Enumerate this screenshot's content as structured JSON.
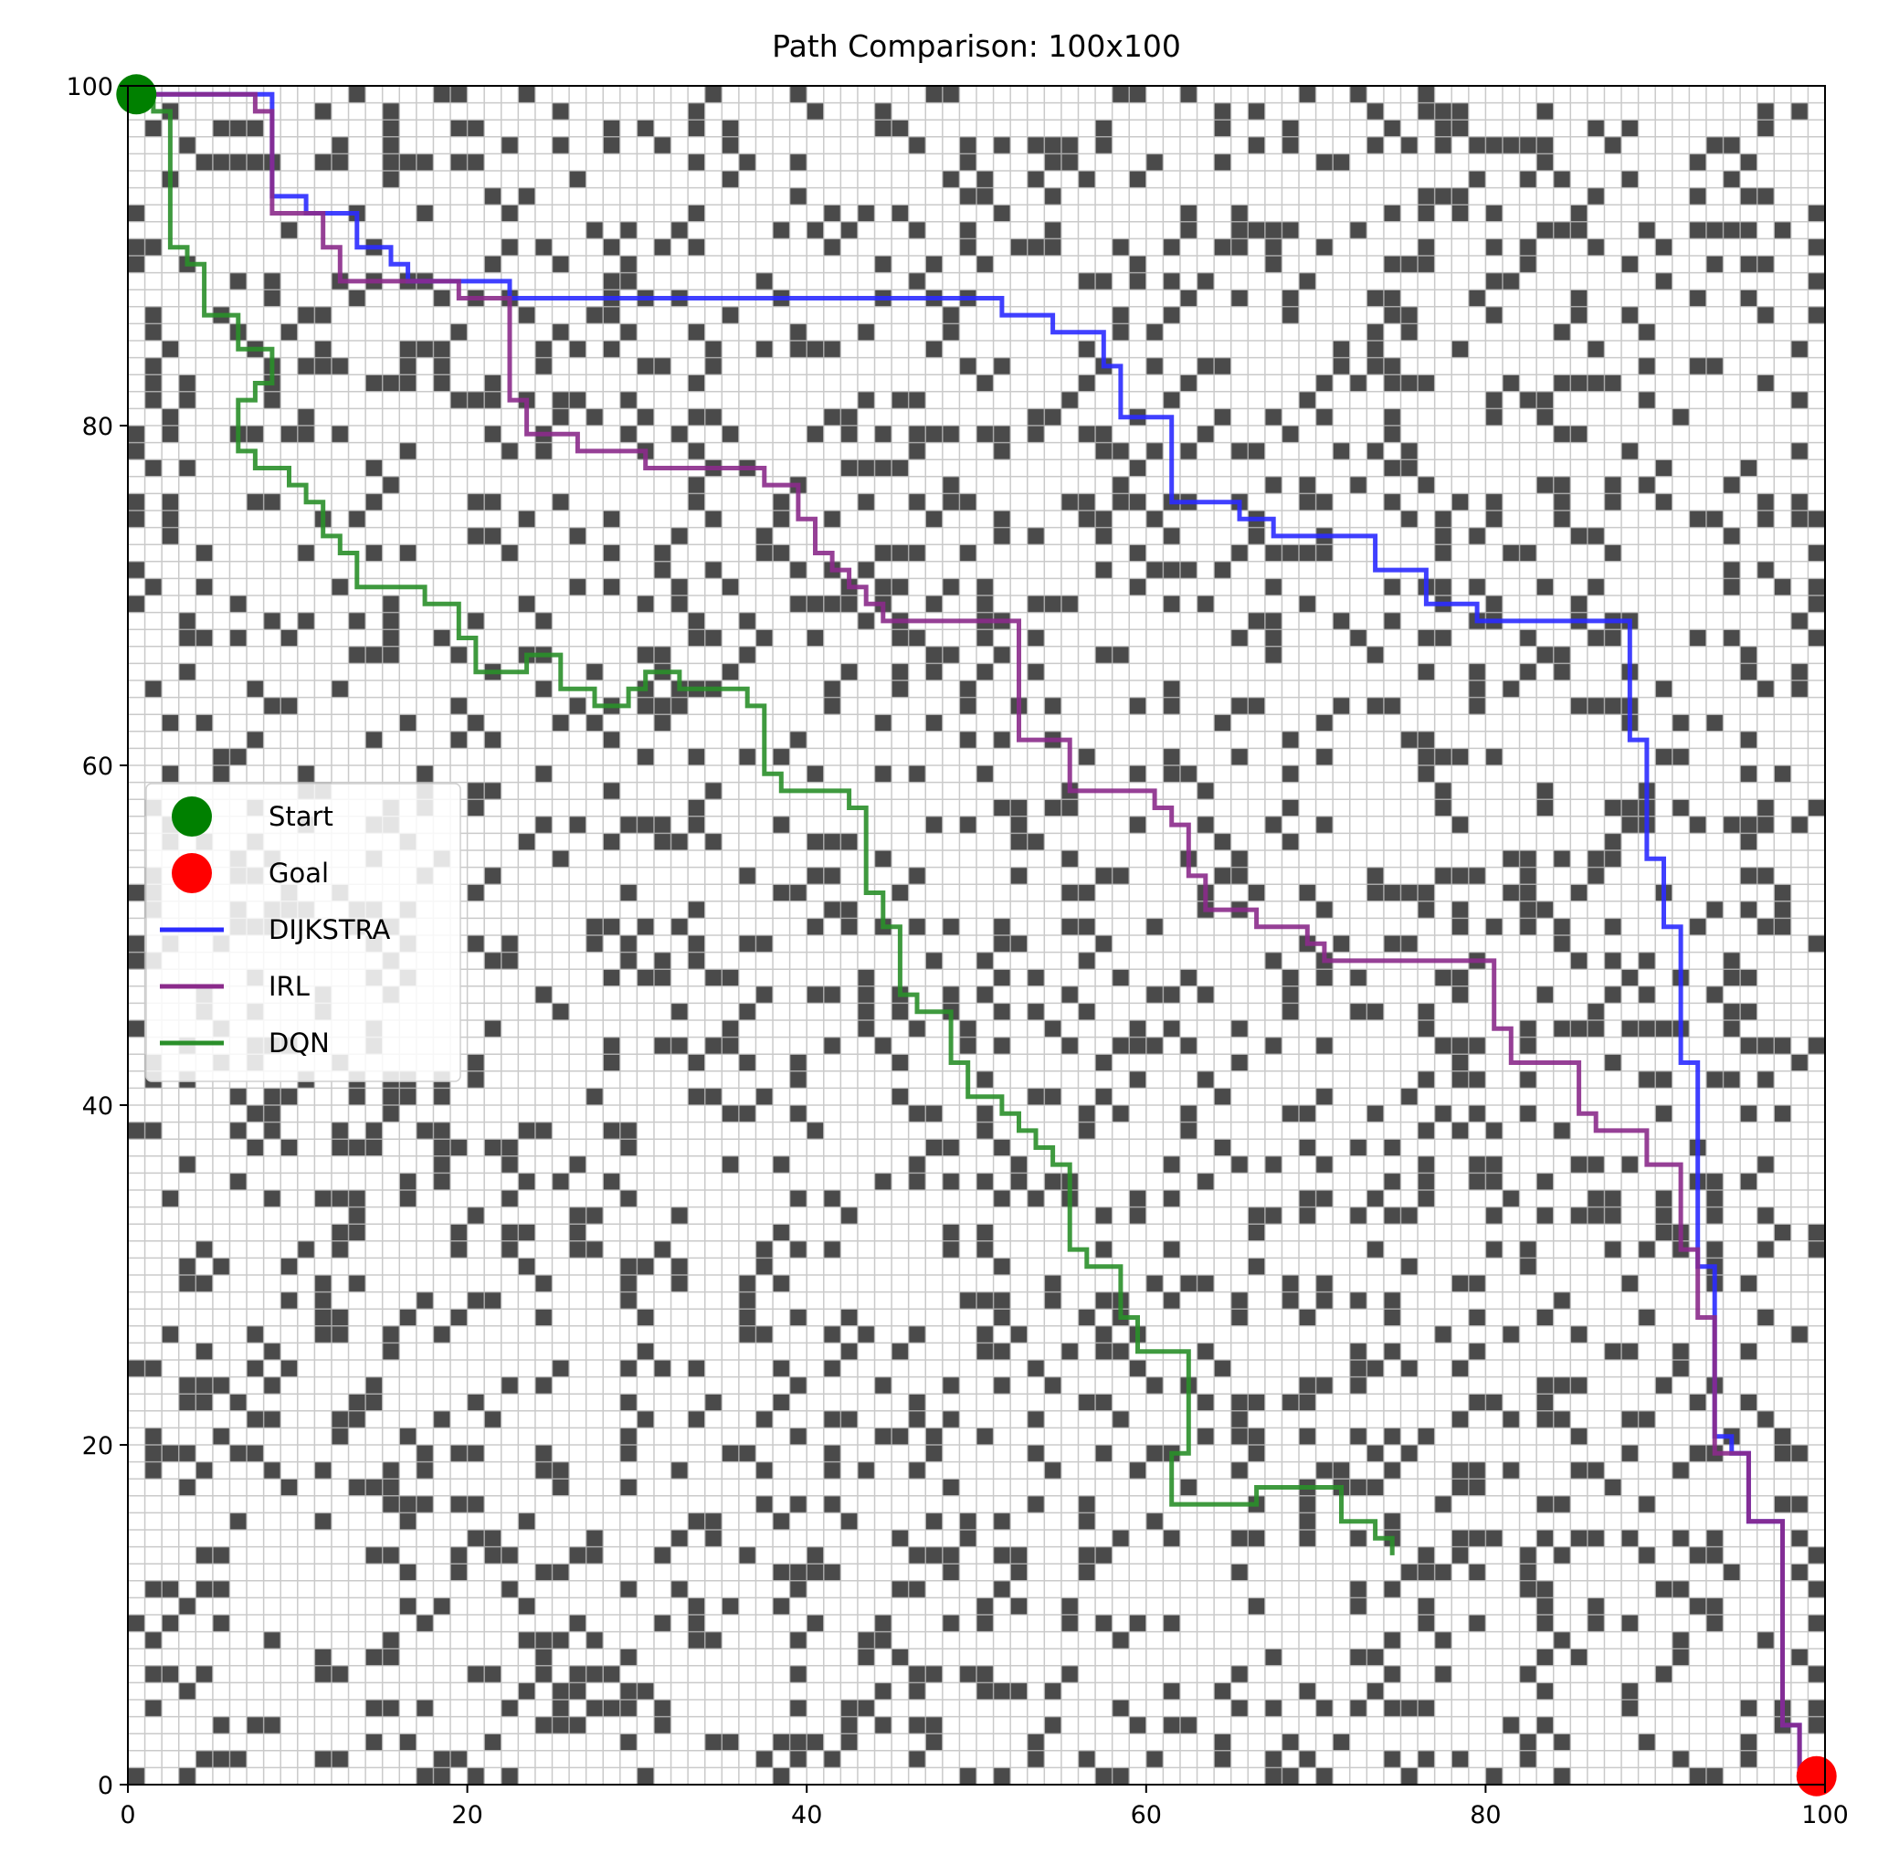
{
  "chart_data": {
    "type": "line",
    "title": "Path Comparison: 100x100",
    "xlabel": "",
    "ylabel": "",
    "xlim": [
      0,
      100
    ],
    "ylim": [
      0,
      100
    ],
    "x_ticks": [
      "0",
      "20",
      "40",
      "60",
      "80",
      "100"
    ],
    "y_ticks": [
      "0",
      "20",
      "40",
      "60",
      "80",
      "100"
    ],
    "grid": true,
    "background": "random obstacle grid (100x100 cells, dark = obstacle)",
    "legend_position": "center-left",
    "markers": [
      {
        "name": "Start",
        "x": 0.5,
        "y": 99.5,
        "color": "#008000"
      },
      {
        "name": "Goal",
        "x": 99.5,
        "y": 0.5,
        "color": "#ff0000"
      }
    ],
    "series": [
      {
        "name": "DIJKSTRA",
        "color": "#2b2bff",
        "points": [
          [
            0.5,
            99.5
          ],
          [
            8.5,
            99.5
          ],
          [
            8.5,
            93.5
          ],
          [
            10.5,
            93.5
          ],
          [
            10.5,
            92.5
          ],
          [
            13.5,
            92.5
          ],
          [
            13.5,
            90.5
          ],
          [
            15.5,
            90.5
          ],
          [
            15.5,
            89.5
          ],
          [
            16.5,
            89.5
          ],
          [
            16.5,
            88.5
          ],
          [
            22.5,
            88.5
          ],
          [
            22.5,
            87.5
          ],
          [
            51.5,
            87.5
          ],
          [
            51.5,
            86.5
          ],
          [
            54.5,
            86.5
          ],
          [
            54.5,
            85.5
          ],
          [
            57.5,
            85.5
          ],
          [
            57.5,
            83.5
          ],
          [
            58.5,
            83.5
          ],
          [
            58.5,
            80.5
          ],
          [
            61.5,
            80.5
          ],
          [
            61.5,
            75.5
          ],
          [
            65.5,
            75.5
          ],
          [
            65.5,
            74.5
          ],
          [
            67.5,
            74.5
          ],
          [
            67.5,
            73.5
          ],
          [
            73.5,
            73.5
          ],
          [
            73.5,
            71.5
          ],
          [
            76.5,
            71.5
          ],
          [
            76.5,
            69.5
          ],
          [
            79.5,
            69.5
          ],
          [
            79.5,
            68.5
          ],
          [
            88.5,
            68.5
          ],
          [
            88.5,
            61.5
          ],
          [
            89.5,
            61.5
          ],
          [
            89.5,
            54.5
          ],
          [
            90.5,
            54.5
          ],
          [
            90.5,
            50.5
          ],
          [
            91.5,
            50.5
          ],
          [
            91.5,
            42.5
          ],
          [
            92.5,
            42.5
          ],
          [
            92.5,
            30.5
          ],
          [
            93.5,
            30.5
          ],
          [
            93.5,
            20.5
          ],
          [
            94.5,
            20.5
          ],
          [
            94.5,
            19.5
          ],
          [
            95.5,
            19.5
          ],
          [
            95.5,
            15.5
          ],
          [
            97.5,
            15.5
          ],
          [
            97.5,
            3.5
          ],
          [
            98.5,
            3.5
          ],
          [
            98.5,
            0.5
          ],
          [
            99.5,
            0.5
          ]
        ]
      },
      {
        "name": "IRL",
        "color": "#8b2b8b",
        "points": [
          [
            0.5,
            99.5
          ],
          [
            7.5,
            99.5
          ],
          [
            7.5,
            98.5
          ],
          [
            8.5,
            98.5
          ],
          [
            8.5,
            92.5
          ],
          [
            11.5,
            92.5
          ],
          [
            11.5,
            90.5
          ],
          [
            12.5,
            90.5
          ],
          [
            12.5,
            88.5
          ],
          [
            19.5,
            88.5
          ],
          [
            19.5,
            87.5
          ],
          [
            22.5,
            87.5
          ],
          [
            22.5,
            81.5
          ],
          [
            23.5,
            81.5
          ],
          [
            23.5,
            79.5
          ],
          [
            26.5,
            79.5
          ],
          [
            26.5,
            78.5
          ],
          [
            30.5,
            78.5
          ],
          [
            30.5,
            77.5
          ],
          [
            37.5,
            77.5
          ],
          [
            37.5,
            76.5
          ],
          [
            39.5,
            76.5
          ],
          [
            39.5,
            74.5
          ],
          [
            40.5,
            74.5
          ],
          [
            40.5,
            72.5
          ],
          [
            41.5,
            72.5
          ],
          [
            41.5,
            71.5
          ],
          [
            42.5,
            71.5
          ],
          [
            42.5,
            70.5
          ],
          [
            43.5,
            70.5
          ],
          [
            43.5,
            69.5
          ],
          [
            44.5,
            69.5
          ],
          [
            44.5,
            68.5
          ],
          [
            52.5,
            68.5
          ],
          [
            52.5,
            61.5
          ],
          [
            55.5,
            61.5
          ],
          [
            55.5,
            58.5
          ],
          [
            60.5,
            58.5
          ],
          [
            60.5,
            57.5
          ],
          [
            61.5,
            57.5
          ],
          [
            61.5,
            56.5
          ],
          [
            62.5,
            56.5
          ],
          [
            62.5,
            53.5
          ],
          [
            63.5,
            53.5
          ],
          [
            63.5,
            51.5
          ],
          [
            66.5,
            51.5
          ],
          [
            66.5,
            50.5
          ],
          [
            69.5,
            50.5
          ],
          [
            69.5,
            49.5
          ],
          [
            70.5,
            49.5
          ],
          [
            70.5,
            48.5
          ],
          [
            80.5,
            48.5
          ],
          [
            80.5,
            44.5
          ],
          [
            81.5,
            44.5
          ],
          [
            81.5,
            42.5
          ],
          [
            85.5,
            42.5
          ],
          [
            85.5,
            39.5
          ],
          [
            86.5,
            39.5
          ],
          [
            86.5,
            38.5
          ],
          [
            89.5,
            38.5
          ],
          [
            89.5,
            36.5
          ],
          [
            91.5,
            36.5
          ],
          [
            91.5,
            31.5
          ],
          [
            92.5,
            31.5
          ],
          [
            92.5,
            27.5
          ],
          [
            93.5,
            27.5
          ],
          [
            93.5,
            19.5
          ],
          [
            95.5,
            19.5
          ],
          [
            95.5,
            15.5
          ],
          [
            97.5,
            15.5
          ],
          [
            97.5,
            3.5
          ],
          [
            98.5,
            3.5
          ],
          [
            98.5,
            0.5
          ],
          [
            99.5,
            0.5
          ]
        ]
      },
      {
        "name": "DQN",
        "color": "#2a8f2a",
        "points": [
          [
            0.5,
            99.5
          ],
          [
            1.5,
            99.5
          ],
          [
            1.5,
            98.5
          ],
          [
            2.5,
            98.5
          ],
          [
            2.5,
            90.5
          ],
          [
            3.5,
            90.5
          ],
          [
            3.5,
            89.5
          ],
          [
            4.5,
            89.5
          ],
          [
            4.5,
            86.5
          ],
          [
            6.5,
            86.5
          ],
          [
            6.5,
            84.5
          ],
          [
            8.5,
            84.5
          ],
          [
            8.5,
            82.5
          ],
          [
            7.5,
            82.5
          ],
          [
            7.5,
            81.5
          ],
          [
            6.5,
            81.5
          ],
          [
            6.5,
            78.5
          ],
          [
            7.5,
            78.5
          ],
          [
            7.5,
            77.5
          ],
          [
            9.5,
            77.5
          ],
          [
            9.5,
            76.5
          ],
          [
            10.5,
            76.5
          ],
          [
            10.5,
            75.5
          ],
          [
            11.5,
            75.5
          ],
          [
            11.5,
            73.5
          ],
          [
            12.5,
            73.5
          ],
          [
            12.5,
            72.5
          ],
          [
            13.5,
            72.5
          ],
          [
            13.5,
            70.5
          ],
          [
            17.5,
            70.5
          ],
          [
            17.5,
            69.5
          ],
          [
            19.5,
            69.5
          ],
          [
            19.5,
            67.5
          ],
          [
            20.5,
            67.5
          ],
          [
            20.5,
            65.5
          ],
          [
            23.5,
            65.5
          ],
          [
            23.5,
            66.5
          ],
          [
            25.5,
            66.5
          ],
          [
            25.5,
            64.5
          ],
          [
            27.5,
            64.5
          ],
          [
            27.5,
            63.5
          ],
          [
            29.5,
            63.5
          ],
          [
            29.5,
            64.5
          ],
          [
            30.5,
            64.5
          ],
          [
            30.5,
            65.5
          ],
          [
            32.5,
            65.5
          ],
          [
            32.5,
            64.5
          ],
          [
            36.5,
            64.5
          ],
          [
            36.5,
            63.5
          ],
          [
            37.5,
            63.5
          ],
          [
            37.5,
            59.5
          ],
          [
            38.5,
            59.5
          ],
          [
            38.5,
            58.5
          ],
          [
            42.5,
            58.5
          ],
          [
            42.5,
            57.5
          ],
          [
            43.5,
            57.5
          ],
          [
            43.5,
            52.5
          ],
          [
            44.5,
            52.5
          ],
          [
            44.5,
            50.5
          ],
          [
            45.5,
            50.5
          ],
          [
            45.5,
            46.5
          ],
          [
            46.5,
            46.5
          ],
          [
            46.5,
            45.5
          ],
          [
            48.5,
            45.5
          ],
          [
            48.5,
            42.5
          ],
          [
            49.5,
            42.5
          ],
          [
            49.5,
            40.5
          ],
          [
            51.5,
            40.5
          ],
          [
            51.5,
            39.5
          ],
          [
            52.5,
            39.5
          ],
          [
            52.5,
            38.5
          ],
          [
            53.5,
            38.5
          ],
          [
            53.5,
            37.5
          ],
          [
            54.5,
            37.5
          ],
          [
            54.5,
            36.5
          ],
          [
            55.5,
            36.5
          ],
          [
            55.5,
            31.5
          ],
          [
            56.5,
            31.5
          ],
          [
            56.5,
            30.5
          ],
          [
            58.5,
            30.5
          ],
          [
            58.5,
            27.5
          ],
          [
            59.5,
            27.5
          ],
          [
            59.5,
            25.5
          ],
          [
            62.5,
            25.5
          ],
          [
            62.5,
            19.5
          ],
          [
            61.5,
            19.5
          ],
          [
            61.5,
            16.5
          ],
          [
            66.5,
            16.5
          ],
          [
            66.5,
            17.5
          ],
          [
            71.5,
            17.5
          ],
          [
            71.5,
            15.5
          ],
          [
            73.5,
            15.5
          ],
          [
            73.5,
            14.5
          ],
          [
            74.5,
            14.5
          ],
          [
            74.5,
            13.5
          ]
        ]
      }
    ]
  }
}
